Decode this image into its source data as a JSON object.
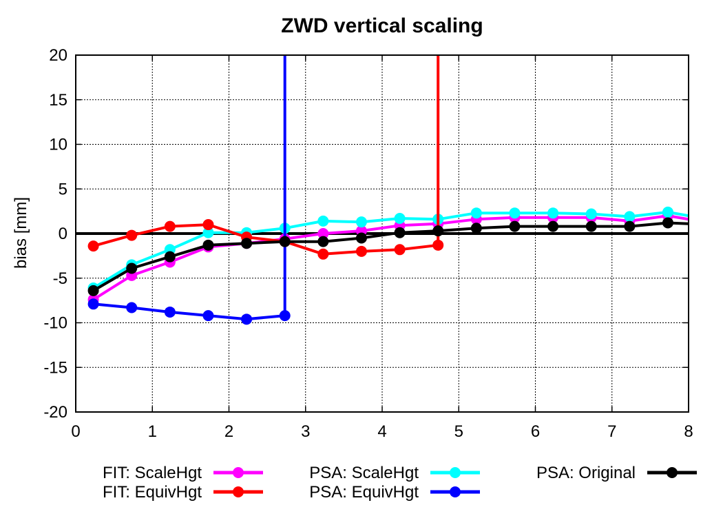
{
  "chart_data": {
    "type": "line",
    "title": "ZWD vertical scaling",
    "xlabel": "",
    "ylabel": "bias [mm]",
    "xlim": [
      0,
      8
    ],
    "ylim": [
      -20,
      20
    ],
    "xticks": [
      0,
      1,
      2,
      3,
      4,
      5,
      6,
      7,
      8
    ],
    "yticks": [
      -20,
      -15,
      -10,
      -5,
      0,
      5,
      10,
      15,
      20
    ],
    "grid": true,
    "legend_position": "bottom",
    "zero_line": true,
    "series": [
      {
        "name": "FIT: ScaleHgt",
        "color": "#ff00ff",
        "x": [
          0.23,
          0.73,
          1.23,
          1.73,
          2.23,
          2.73,
          3.23,
          3.73,
          4.23,
          4.73,
          5.23,
          5.73,
          6.23,
          6.73,
          7.23,
          7.73,
          8.0
        ],
        "y": [
          -7.4,
          -4.7,
          -3.2,
          -1.5,
          -1.1,
          -0.6,
          0.0,
          0.3,
          0.9,
          1.1,
          1.6,
          1.8,
          1.8,
          1.8,
          1.4,
          2.0,
          1.6
        ]
      },
      {
        "name": "FIT: EquivHgt",
        "color": "#ff0000",
        "x": [
          0.23,
          0.73,
          1.23,
          1.73,
          2.23,
          2.73,
          3.23,
          3.73,
          4.23,
          4.73,
          4.73
        ],
        "y": [
          -1.4,
          -0.2,
          0.8,
          1.0,
          -0.4,
          -0.9,
          -2.3,
          -2.0,
          -1.8,
          -1.3,
          20
        ]
      },
      {
        "name": "PSA: ScaleHgt",
        "color": "#00ffff",
        "x": [
          0.23,
          0.73,
          1.23,
          1.73,
          2.23,
          2.73,
          3.23,
          3.73,
          4.23,
          4.73,
          5.23,
          5.73,
          6.23,
          6.73,
          7.23,
          7.73,
          8.0
        ],
        "y": [
          -6.1,
          -3.5,
          -1.8,
          0.1,
          0.1,
          0.6,
          1.4,
          1.3,
          1.7,
          1.6,
          2.3,
          2.3,
          2.3,
          2.2,
          1.9,
          2.4,
          2.0
        ]
      },
      {
        "name": "PSA: EquivHgt",
        "color": "#0000ff",
        "x": [
          0.23,
          0.73,
          1.23,
          1.73,
          2.23,
          2.73,
          2.73
        ],
        "y": [
          -7.9,
          -8.3,
          -8.8,
          -9.2,
          -9.6,
          -9.2,
          20
        ]
      },
      {
        "name": "PSA: Original",
        "color": "#000000",
        "x": [
          0.23,
          0.73,
          1.23,
          1.73,
          2.23,
          2.73,
          3.23,
          3.73,
          4.23,
          4.73,
          5.23,
          5.73,
          6.23,
          6.73,
          7.23,
          7.73,
          8.0
        ],
        "y": [
          -6.4,
          -3.9,
          -2.6,
          -1.3,
          -1.1,
          -0.9,
          -0.9,
          -0.5,
          0.1,
          0.3,
          0.6,
          0.8,
          0.8,
          0.8,
          0.8,
          1.2,
          1.1
        ]
      }
    ]
  }
}
